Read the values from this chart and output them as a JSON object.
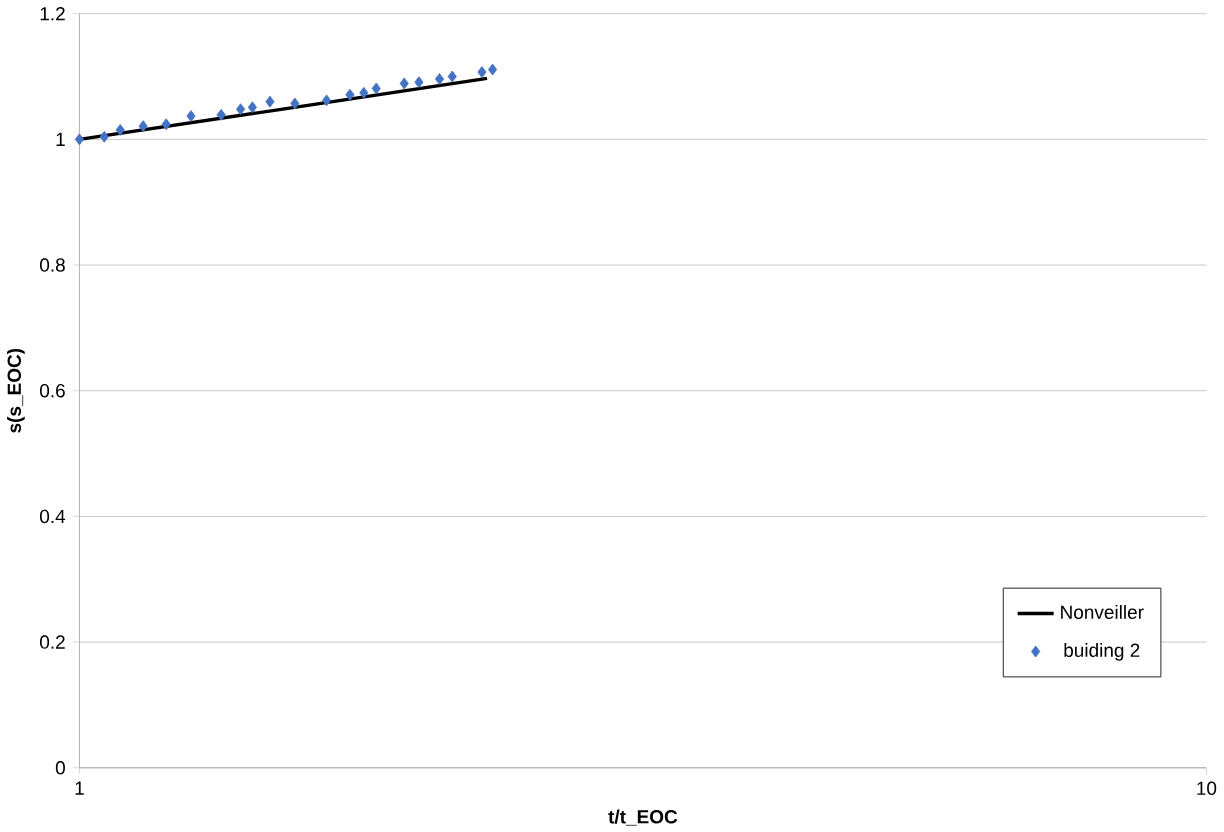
{
  "chart_data": {
    "type": "scatter",
    "xlabel": "t/t_EOC",
    "ylabel": "s(s_EOC)",
    "log": "x",
    "xlim": [
      1,
      10
    ],
    "xticks": [
      1,
      10
    ],
    "ylim": [
      0,
      1.2
    ],
    "yticks": [
      {
        "value": 0,
        "label": "0"
      },
      {
        "value": 0.2,
        "label": "0.2"
      },
      {
        "value": 0.4,
        "label": "0.4"
      },
      {
        "value": 0.6,
        "label": "0.6"
      },
      {
        "value": 0.8,
        "label": "0.8"
      },
      {
        "value": 1,
        "label": "1"
      },
      {
        "value": 1.2,
        "label": "1.2"
      }
    ],
    "grid": "y",
    "legend": "bottom right",
    "series": [
      {
        "name": "Nonveiller",
        "type": "line",
        "color": "#000000",
        "marker": "none",
        "line_style": "solid",
        "x": [
          1,
          1.5,
          2.3
        ],
        "values": [
          1.0,
          1.047,
          1.097
        ]
      },
      {
        "name": "buiding 2",
        "color": "#4472c4",
        "marker": "diamond",
        "x": [
          1.0,
          1.052,
          1.087,
          1.139,
          1.194,
          1.256,
          1.336,
          1.39,
          1.424,
          1.476,
          1.553,
          1.657,
          1.738,
          1.788,
          1.834,
          1.942,
          2.001,
          2.087,
          2.142,
          2.276,
          2.326
        ],
        "values": [
          1.0,
          1.004,
          1.015,
          1.021,
          1.024,
          1.037,
          1.039,
          1.048,
          1.051,
          1.06,
          1.057,
          1.062,
          1.071,
          1.074,
          1.081,
          1.089,
          1.091,
          1.096,
          1.1,
          1.107,
          1.111
        ]
      }
    ]
  }
}
